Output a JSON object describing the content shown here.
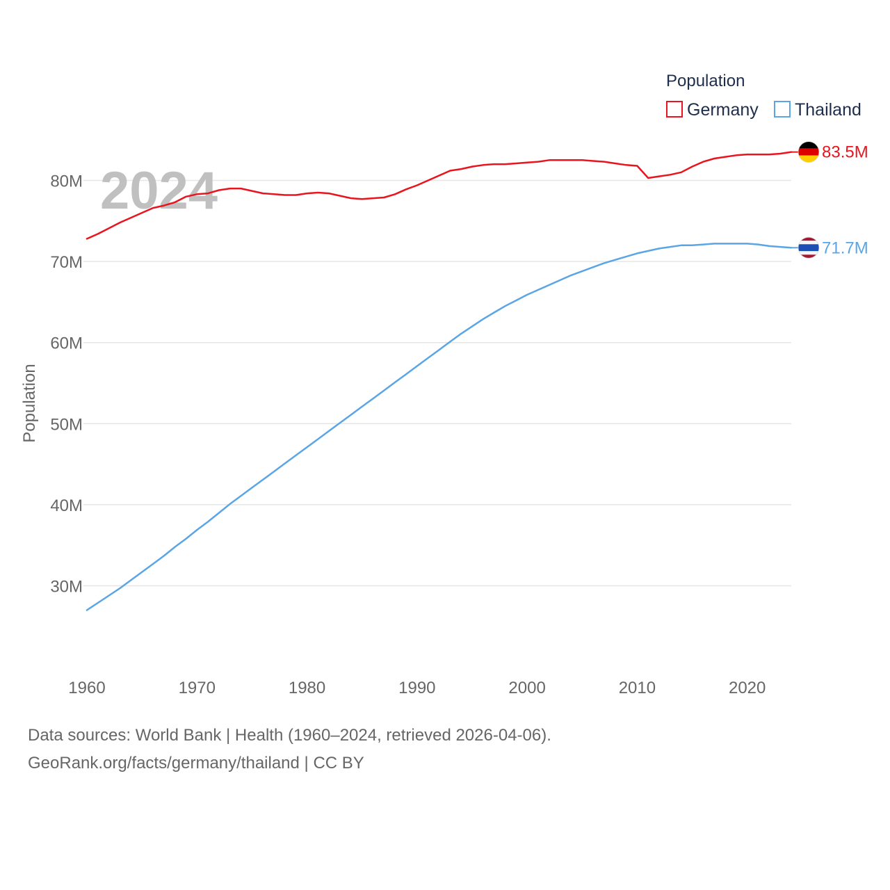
{
  "chart_data": {
    "type": "line",
    "ylabel": "Population",
    "year_label": "2024",
    "legend_title": "Population",
    "x_ticks": [
      1960,
      1970,
      1980,
      1990,
      2000,
      2010,
      2020
    ],
    "y_ticks": [
      {
        "value": 30,
        "label": "30M"
      },
      {
        "value": 40,
        "label": "40M"
      },
      {
        "value": 50,
        "label": "50M"
      },
      {
        "value": 60,
        "label": "60M"
      },
      {
        "value": 70,
        "label": "70M"
      },
      {
        "value": 80,
        "label": "80M"
      }
    ],
    "xlim": [
      1960,
      2024
    ],
    "ylim": [
      22.5,
      87.5
    ],
    "series": [
      {
        "name": "Germany",
        "color": "#e8141e",
        "end_label": "83.5M",
        "flag": "germany-flag",
        "x": [
          1960,
          1961,
          1962,
          1963,
          1964,
          1965,
          1966,
          1967,
          1968,
          1969,
          1970,
          1971,
          1972,
          1973,
          1974,
          1975,
          1976,
          1977,
          1978,
          1979,
          1980,
          1981,
          1982,
          1983,
          1984,
          1985,
          1986,
          1987,
          1988,
          1989,
          1990,
          1991,
          1992,
          1993,
          1994,
          1995,
          1996,
          1997,
          1998,
          1999,
          2000,
          2001,
          2002,
          2003,
          2004,
          2005,
          2006,
          2007,
          2008,
          2009,
          2010,
          2011,
          2012,
          2013,
          2014,
          2015,
          2016,
          2017,
          2018,
          2019,
          2020,
          2021,
          2022,
          2023,
          2024
        ],
        "values": [
          72.8,
          73.4,
          74.1,
          74.8,
          75.4,
          76.0,
          76.6,
          76.9,
          77.3,
          78.0,
          78.3,
          78.4,
          78.8,
          79.0,
          79.0,
          78.7,
          78.4,
          78.3,
          78.2,
          78.2,
          78.4,
          78.5,
          78.4,
          78.1,
          77.8,
          77.7,
          77.8,
          77.9,
          78.3,
          78.9,
          79.4,
          80.0,
          80.6,
          81.2,
          81.4,
          81.7,
          81.9,
          82.0,
          82.0,
          82.1,
          82.2,
          82.3,
          82.5,
          82.5,
          82.5,
          82.5,
          82.4,
          82.3,
          82.1,
          81.9,
          81.8,
          80.3,
          80.5,
          80.7,
          81.0,
          81.7,
          82.3,
          82.7,
          82.9,
          83.1,
          83.2,
          83.2,
          83.2,
          83.3,
          83.5
        ]
      },
      {
        "name": "Thailand",
        "color": "#5aa5e6",
        "end_label": "71.7M",
        "flag": "thailand-flag",
        "x": [
          1960,
          1961,
          1962,
          1963,
          1964,
          1965,
          1966,
          1967,
          1968,
          1969,
          1970,
          1971,
          1972,
          1973,
          1974,
          1975,
          1976,
          1977,
          1978,
          1979,
          1980,
          1981,
          1982,
          1983,
          1984,
          1985,
          1986,
          1987,
          1988,
          1989,
          1990,
          1991,
          1992,
          1993,
          1994,
          1995,
          1996,
          1997,
          1998,
          1999,
          2000,
          2001,
          2002,
          2003,
          2004,
          2005,
          2006,
          2007,
          2008,
          2009,
          2010,
          2011,
          2012,
          2013,
          2014,
          2015,
          2016,
          2017,
          2018,
          2019,
          2020,
          2021,
          2022,
          2023,
          2024
        ],
        "values": [
          27.0,
          27.9,
          28.8,
          29.7,
          30.7,
          31.7,
          32.7,
          33.7,
          34.8,
          35.8,
          36.9,
          37.9,
          39.0,
          40.1,
          41.1,
          42.1,
          43.1,
          44.1,
          45.1,
          46.1,
          47.1,
          48.1,
          49.1,
          50.1,
          51.1,
          52.1,
          53.1,
          54.1,
          55.1,
          56.1,
          57.1,
          58.1,
          59.1,
          60.1,
          61.1,
          62.0,
          62.9,
          63.7,
          64.5,
          65.2,
          65.9,
          66.5,
          67.1,
          67.7,
          68.3,
          68.8,
          69.3,
          69.8,
          70.2,
          70.6,
          71.0,
          71.3,
          71.6,
          71.8,
          72.0,
          72.0,
          72.1,
          72.2,
          72.2,
          72.2,
          72.2,
          72.1,
          71.9,
          71.8,
          71.7
        ]
      }
    ]
  },
  "footer": {
    "line1": "Data sources: World Bank | Health (1960–2024, retrieved 2026-04-06).",
    "line2": "GeoRank.org/facts/germany/thailand | CC BY"
  }
}
